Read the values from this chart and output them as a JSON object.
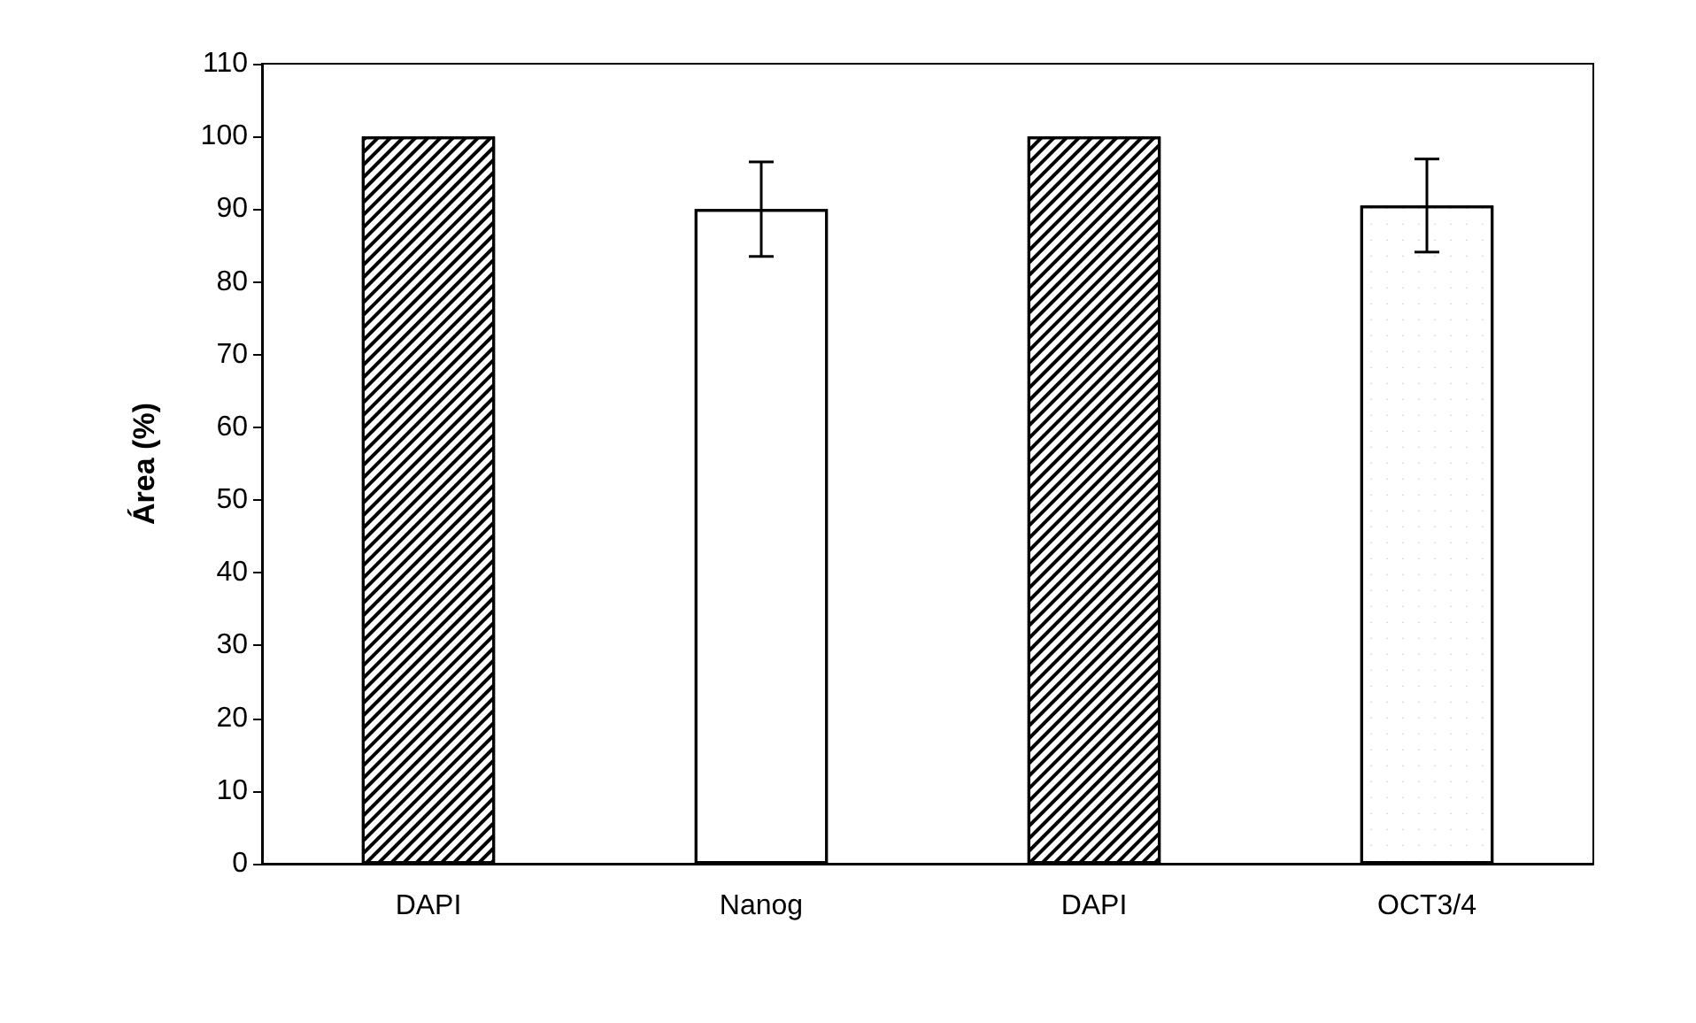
{
  "chart_data": {
    "type": "bar",
    "ylabel": "Área (%)",
    "categories": [
      "DAPI",
      "Nanog",
      "DAPI",
      "OCT3/4"
    ],
    "values": [
      100,
      90,
      100,
      90.5
    ],
    "errors": [
      null,
      6.5,
      null,
      6.4
    ],
    "colors": [
      "#ffffff",
      "#ffffff",
      "#ffffff",
      "#ffffff"
    ],
    "ylim": [
      0,
      110
    ],
    "yticks": [
      0,
      10,
      20,
      30,
      40,
      50,
      60,
      70,
      80,
      90,
      100,
      110
    ],
    "grid": false
  }
}
